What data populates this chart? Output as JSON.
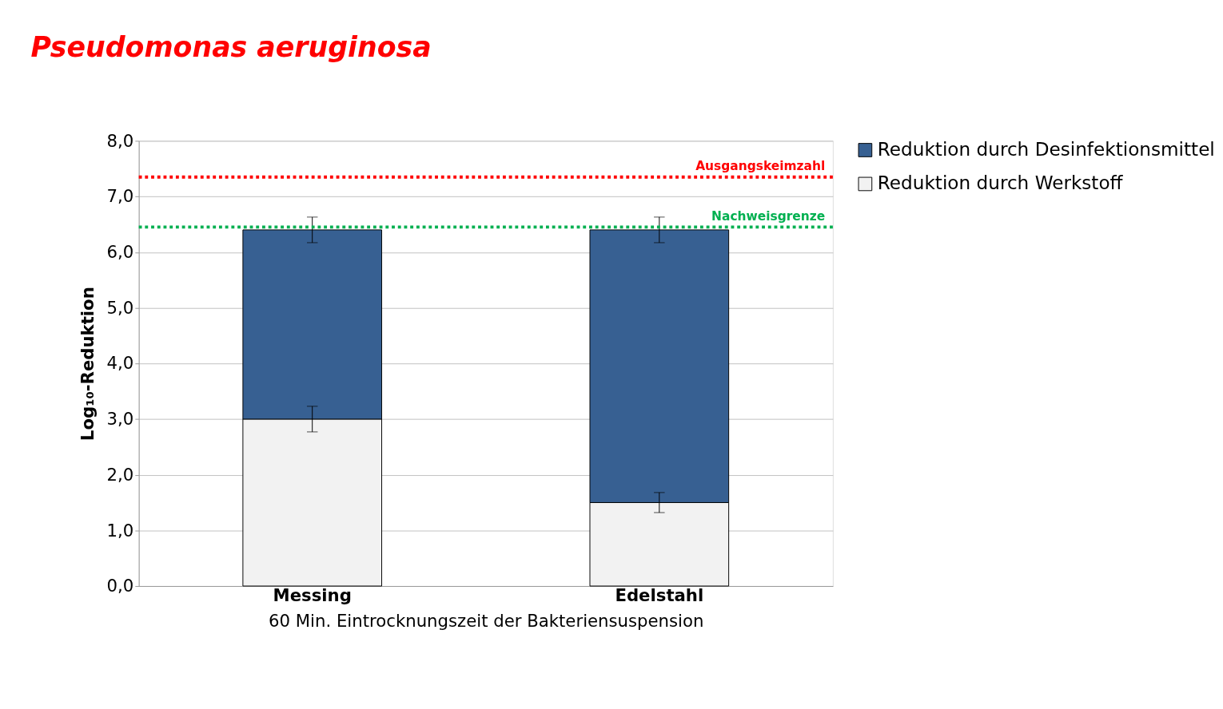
{
  "chart_data": {
    "type": "bar",
    "title": "Pseudomonas aeruginosa",
    "xlabel": "60 Min. Eintrocknungszeit der Bakteriensuspension",
    "ylabel": "Log₁₀-Reduktion",
    "categories": [
      "Messing",
      "Edelstahl"
    ],
    "stacked": true,
    "series": [
      {
        "name": "Reduktion durch Werkstoff",
        "color": "#f2f2f2",
        "values": [
          3.0,
          1.5
        ],
        "errors": [
          0.23,
          0.18
        ]
      },
      {
        "name": "Reduktion durch Desinfektionsmittel",
        "color": "#376092",
        "values": [
          3.4,
          4.9
        ],
        "errors": [
          0.23,
          0.23
        ]
      }
    ],
    "ylim": [
      0,
      8
    ],
    "yticks": [
      {
        "value": 0,
        "label": "0,0"
      },
      {
        "value": 1,
        "label": "1,0"
      },
      {
        "value": 2,
        "label": "2,0"
      },
      {
        "value": 3,
        "label": "3,0"
      },
      {
        "value": 4,
        "label": "4,0"
      },
      {
        "value": 5,
        "label": "5,0"
      },
      {
        "value": 6,
        "label": "6,0"
      },
      {
        "value": 7,
        "label": "7,0"
      },
      {
        "value": 8,
        "label": "8,0"
      }
    ],
    "ref_lines": [
      {
        "axis": "y",
        "value": 7.35,
        "label": "Ausgangskeimzahl",
        "color": "#ff0000",
        "line_style": "dotted"
      },
      {
        "axis": "y",
        "value": 6.45,
        "label": "Nachweisgrenze",
        "color": "#00b050",
        "line_style": "dotted"
      }
    ],
    "grid": "y",
    "legend": "right"
  }
}
